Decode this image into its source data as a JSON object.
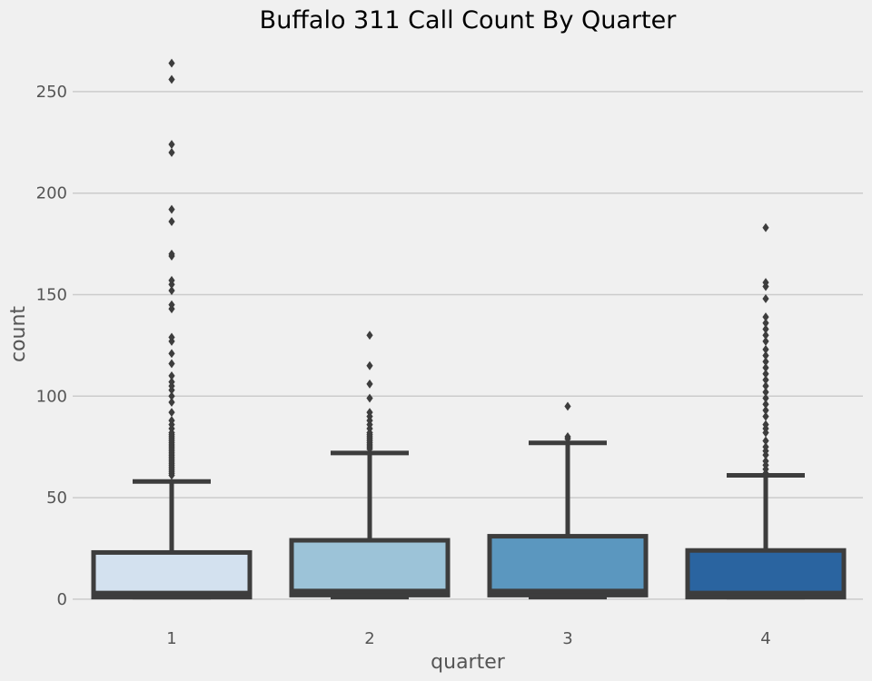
{
  "chart_data": {
    "type": "box",
    "title": "Buffalo 311 Call Count By Quarter",
    "xlabel": "quarter",
    "ylabel": "count",
    "categories": [
      "1",
      "2",
      "3",
      "4"
    ],
    "ylim": [
      -9,
      275
    ],
    "yticks": [
      0,
      50,
      100,
      150,
      200,
      250
    ],
    "grid": "horizontal",
    "colors": {
      "background": "#f0f0f0",
      "grid": "#cbcbcb",
      "box_edge": "#3d3d3d",
      "box_fills": [
        "#d3e1ef",
        "#9cc3d8",
        "#5b97bf",
        "#2a64a0"
      ]
    },
    "boxes": [
      {
        "category": "1",
        "min": 1,
        "q1": 1,
        "median": 3,
        "q3": 23,
        "whisker_high": 58,
        "outliers": [
          61,
          62,
          63,
          64,
          65,
          66,
          67,
          68,
          69,
          70,
          71,
          72,
          73,
          74,
          75,
          76,
          77,
          78,
          79,
          80,
          81,
          82,
          84,
          86,
          88,
          92,
          97,
          100,
          103,
          105,
          107,
          110,
          116,
          121,
          127,
          129,
          143,
          145,
          152,
          155,
          157,
          169,
          170,
          186,
          192,
          220,
          224,
          256,
          264
        ]
      },
      {
        "category": "2",
        "min": 1,
        "q1": 2,
        "median": 4,
        "q3": 29,
        "whisker_high": 72,
        "outliers": [
          74,
          75,
          76,
          77,
          78,
          79,
          80,
          81,
          82,
          84,
          86,
          88,
          90,
          92,
          99,
          106,
          115,
          130
        ]
      },
      {
        "category": "3",
        "min": 1,
        "q1": 2,
        "median": 4,
        "q3": 31,
        "whisker_high": 77,
        "outliers": [
          79,
          80,
          95
        ]
      },
      {
        "category": "4",
        "min": 1,
        "q1": 1,
        "median": 3,
        "q3": 24,
        "whisker_high": 61,
        "outliers": [
          62,
          64,
          66,
          68,
          71,
          73,
          75,
          78,
          82,
          84,
          86,
          90,
          93,
          96,
          99,
          102,
          105,
          108,
          111,
          114,
          117,
          120,
          123,
          127,
          130,
          133,
          136,
          139,
          148,
          154,
          156,
          183
        ]
      }
    ]
  }
}
